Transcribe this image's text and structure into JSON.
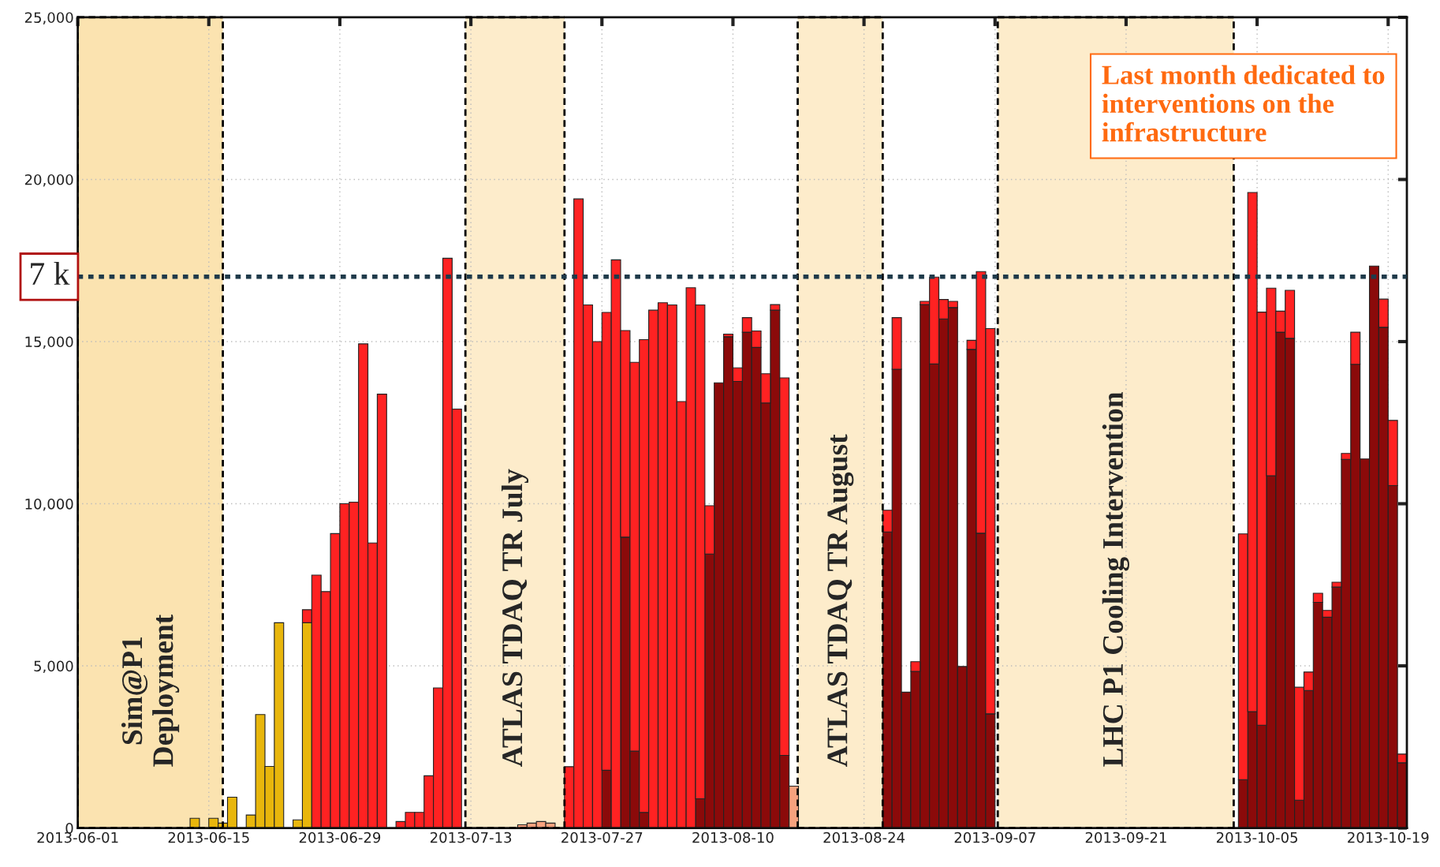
{
  "chart_data": {
    "type": "bar",
    "stacked": true,
    "x": [
      "2013-06-13",
      "2013-06-15",
      "2013-06-16",
      "2013-06-17",
      "2013-06-19",
      "2013-06-20",
      "2013-06-21",
      "2013-06-22",
      "2013-06-24",
      "2013-06-25",
      "2013-06-26",
      "2013-06-27",
      "2013-06-28",
      "2013-06-29",
      "2013-06-30",
      "2013-07-01",
      "2013-07-02",
      "2013-07-03",
      "2013-07-05",
      "2013-07-06",
      "2013-07-07",
      "2013-07-08",
      "2013-07-09",
      "2013-07-10",
      "2013-07-11",
      "2013-07-18",
      "2013-07-19",
      "2013-07-20",
      "2013-07-21",
      "2013-07-23",
      "2013-07-24",
      "2013-07-25",
      "2013-07-26",
      "2013-07-27",
      "2013-07-28",
      "2013-07-29",
      "2013-07-30",
      "2013-07-31",
      "2013-08-01",
      "2013-08-02",
      "2013-08-03",
      "2013-08-04",
      "2013-08-05",
      "2013-08-06",
      "2013-08-07",
      "2013-08-08",
      "2013-08-09",
      "2013-08-10",
      "2013-08-11",
      "2013-08-12",
      "2013-08-13",
      "2013-08-14",
      "2013-08-15",
      "2013-08-16",
      "2013-08-26",
      "2013-08-27",
      "2013-08-28",
      "2013-08-29",
      "2013-08-30",
      "2013-08-31",
      "2013-09-01",
      "2013-09-02",
      "2013-09-03",
      "2013-09-04",
      "2013-09-05",
      "2013-09-06",
      "2013-10-03",
      "2013-10-04",
      "2013-10-05",
      "2013-10-06",
      "2013-10-07",
      "2013-10-08",
      "2013-10-09",
      "2013-10-10",
      "2013-10-11",
      "2013-10-12",
      "2013-10-13",
      "2013-10-14",
      "2013-10-15",
      "2013-10-16",
      "2013-10-17",
      "2013-10-18",
      "2013-10-19",
      "2013-10-20"
    ],
    "series": [
      {
        "color": "#8b0a0a",
        "values": [
          null,
          null,
          null,
          null,
          null,
          null,
          null,
          null,
          null,
          null,
          null,
          null,
          null,
          null,
          null,
          null,
          null,
          null,
          null,
          null,
          null,
          null,
          null,
          null,
          null,
          null,
          null,
          null,
          null,
          null,
          null,
          null,
          null,
          1780,
          null,
          8970,
          2370,
          480,
          null,
          null,
          null,
          null,
          null,
          900,
          8450,
          13730,
          15150,
          13770,
          15290,
          14820,
          13110,
          15970,
          2240,
          null,
          9130,
          14150,
          4190,
          4830,
          16140,
          14310,
          15700,
          16050,
          4980,
          14760,
          9090,
          3520,
          1490,
          3590,
          3170,
          10860,
          15290,
          15100,
          860,
          4240,
          6960,
          6500,
          7430,
          11370,
          14300,
          11380,
          17330,
          15440,
          10560,
          2010
        ]
      },
      {
        "color": "#f7a27e",
        "values": [
          null,
          null,
          null,
          null,
          null,
          null,
          null,
          null,
          null,
          null,
          null,
          null,
          null,
          null,
          null,
          null,
          null,
          null,
          null,
          null,
          null,
          null,
          null,
          null,
          null,
          100,
          150,
          200,
          150,
          null,
          null,
          null,
          null,
          null,
          null,
          null,
          null,
          null,
          null,
          null,
          null,
          null,
          null,
          null,
          null,
          null,
          null,
          null,
          null,
          null,
          null,
          null,
          null,
          1290,
          null,
          null,
          null,
          null,
          null,
          null,
          null,
          null,
          null,
          null,
          null,
          null,
          null,
          null,
          null,
          null,
          null,
          null,
          null,
          null,
          null,
          null,
          null,
          null,
          null,
          null,
          null,
          null,
          null,
          null
        ]
      },
      {
        "color": "#e8b60c",
        "values": [
          300,
          300,
          150,
          950,
          400,
          3500,
          1900,
          6330,
          250,
          6330,
          null,
          null,
          null,
          null,
          null,
          null,
          null,
          null,
          null,
          null,
          null,
          null,
          null,
          null,
          null,
          null,
          null,
          null,
          null,
          null,
          null,
          null,
          null,
          null,
          null,
          null,
          null,
          null,
          null,
          null,
          null,
          null,
          null,
          null,
          null,
          null,
          null,
          null,
          null,
          null,
          null,
          null,
          null,
          null,
          null,
          null,
          null,
          null,
          null,
          null,
          null,
          null,
          null,
          null,
          null,
          null,
          null,
          null,
          null,
          null,
          null,
          null,
          null,
          null,
          null,
          null,
          null,
          null,
          null,
          null,
          null,
          null,
          null,
          null
        ]
      },
      {
        "color": "#ff2222",
        "values": [
          null,
          null,
          null,
          null,
          null,
          null,
          null,
          null,
          null,
          400,
          7800,
          7290,
          9080,
          10000,
          10050,
          14930,
          8790,
          13380,
          200,
          480,
          480,
          1610,
          4320,
          17570,
          12920,
          null,
          null,
          null,
          null,
          1890,
          19400,
          16130,
          15000,
          14120,
          17520,
          6370,
          11990,
          14580,
          15970,
          16200,
          16130,
          13150,
          16660,
          15230,
          1490,
          null,
          80,
          420,
          450,
          510,
          900,
          170,
          11640,
          null,
          670,
          1590,
          null,
          300,
          100,
          2680,
          600,
          190,
          null,
          280,
          8070,
          11880,
          7580,
          16010,
          12740,
          5790,
          650,
          1480,
          3480,
          570,
          280,
          210,
          150,
          180,
          990,
          null,
          null,
          870,
          2010,
          270
        ]
      }
    ],
    "xlim": [
      "2013-06-01",
      "2013-10-21"
    ],
    "xticks": [
      "2013-06-01",
      "2013-06-15",
      "2013-06-29",
      "2013-07-13",
      "2013-07-27",
      "2013-08-10",
      "2013-08-24",
      "2013-09-07",
      "2013-09-21",
      "2013-10-05",
      "2013-10-19"
    ],
    "ylim": [
      0,
      25000
    ],
    "yticks": [
      {
        "value": 0,
        "label": "0"
      },
      {
        "value": 5000,
        "label": "5,000"
      },
      {
        "value": 10000,
        "label": "10,000"
      },
      {
        "value": 15000,
        "label": "15,000"
      },
      {
        "value": 20000,
        "label": "20,000"
      },
      {
        "value": 25000,
        "label": "25,000"
      }
    ],
    "grid": true,
    "bands": [
      {
        "axis": "x",
        "from": "2013-06-01",
        "to": "2013-06-16T12:00",
        "label": "Sim@P1\nDeployment",
        "color": "#fbe3b0"
      },
      {
        "axis": "x",
        "from": "2013-07-12T10:00",
        "to": "2013-07-23",
        "label": "ATLAS TDAQ TR July",
        "color": "#fdeccb"
      },
      {
        "axis": "x",
        "from": "2013-08-16T22:00",
        "to": "2013-08-26",
        "label": "ATLAS TDAQ TR August",
        "color": "#fdeccb"
      },
      {
        "axis": "x",
        "from": "2013-09-07T07:00",
        "to": "2013-10-02T12:00",
        "label": "LHC P1 Cooling Intervention",
        "color": "#fdeccb"
      }
    ],
    "ref_lines": [
      {
        "axis": "y",
        "value": 17000,
        "label": "7 k",
        "color": "#1f3a4a",
        "line_style": "dotted"
      }
    ],
    "annotations": [
      "Last month dedicated to interventions on the infrastructure"
    ]
  }
}
